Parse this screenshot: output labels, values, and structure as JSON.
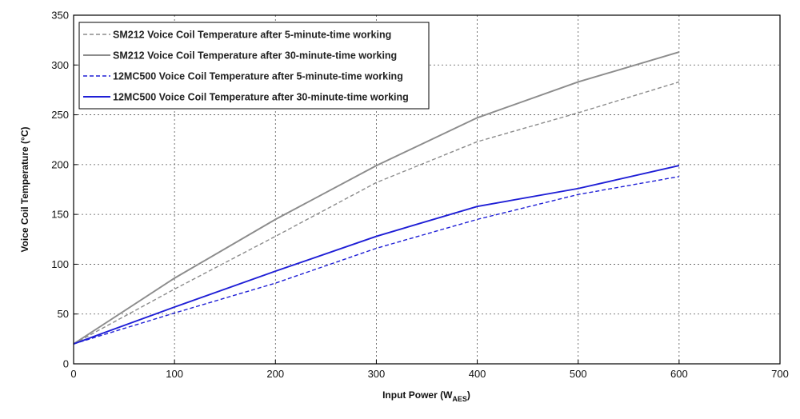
{
  "chart_data": {
    "type": "line",
    "title": "",
    "xlabel": "Input Power (W",
    "xlabel_sub": "AES",
    "xlabel_end": ")",
    "ylabel": "Voice Coil Temperature (°C)",
    "xlim": [
      0,
      700
    ],
    "ylim": [
      0,
      350
    ],
    "xticks": [
      0,
      100,
      200,
      300,
      400,
      500,
      600,
      700
    ],
    "yticks": [
      0,
      50,
      100,
      150,
      200,
      250,
      300,
      350
    ],
    "grid": true,
    "legend_position": "top-left",
    "x": [
      0,
      100,
      200,
      300,
      400,
      500,
      600
    ],
    "series": [
      {
        "name": "SM212 Voice Coil Temperature after 5-minute-time working",
        "color": "#8c8c8c",
        "style": "dashed",
        "values": [
          20,
          75,
          128,
          182,
          223,
          252,
          283
        ]
      },
      {
        "name": "SM212 Voice Coil Temperature after 30-minute-time working",
        "color": "#8c8c8c",
        "style": "solid",
        "values": [
          20,
          86,
          145,
          199,
          247,
          283,
          313
        ]
      },
      {
        "name": "12MC500 Voice Coil Temperature after 5-minute-time working",
        "color": "#1f1fd6",
        "style": "dashed",
        "values": [
          20,
          51,
          81,
          116,
          145,
          170,
          188
        ]
      },
      {
        "name": "12MC500 Voice Coil Temperature after 30-minute-time working",
        "color": "#1f1fd6",
        "style": "solid",
        "values": [
          20,
          57,
          93,
          128,
          158,
          176,
          199
        ]
      }
    ]
  }
}
